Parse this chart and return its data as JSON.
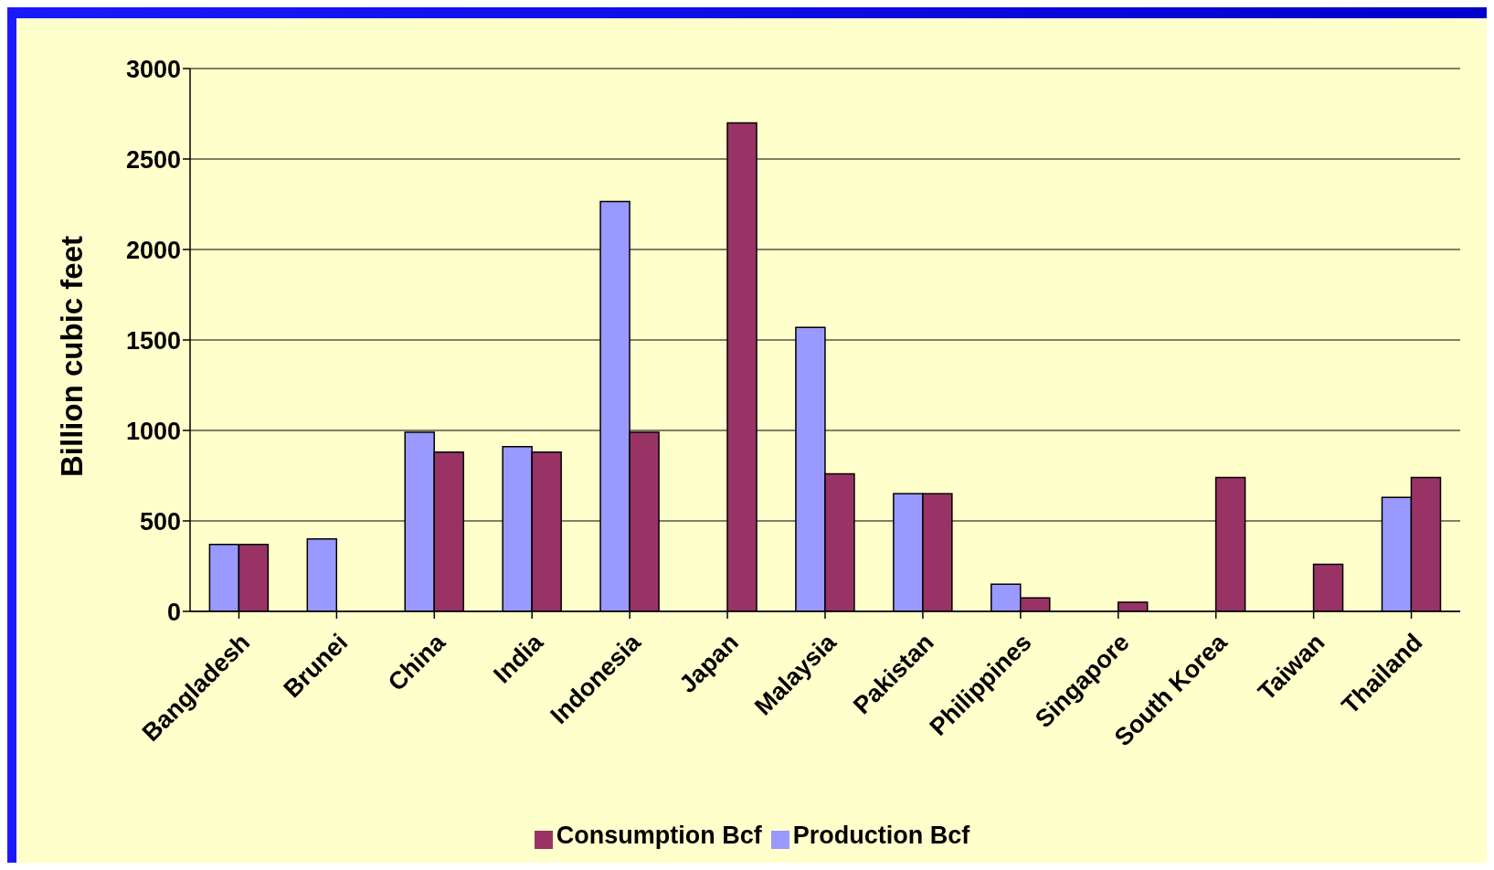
{
  "chart_data": {
    "type": "bar",
    "ylabel": "Billion cubic feet",
    "categories": [
      "Bangladesh",
      "Brunei",
      "China",
      "India",
      "Indonesia",
      "Japan",
      "Malaysia",
      "Pakistan",
      "Philippines",
      "Singapore",
      "South Korea",
      "Taiwan",
      "Thailand"
    ],
    "series": [
      {
        "name": "Production Bcf",
        "color": "#9999ff",
        "values": [
          370,
          400,
          990,
          910,
          2265,
          null,
          1570,
          650,
          150,
          null,
          null,
          null,
          630
        ]
      },
      {
        "name": "Consumption Bcf",
        "color": "#993366",
        "values": [
          370,
          null,
          880,
          880,
          990,
          2700,
          760,
          650,
          75,
          50,
          740,
          260,
          740
        ]
      }
    ],
    "ylim": [
      0,
      3000
    ],
    "yticks": [
      0,
      500,
      1000,
      1500,
      2000,
      2500,
      3000
    ],
    "grid": "y",
    "legend": "bottom"
  }
}
